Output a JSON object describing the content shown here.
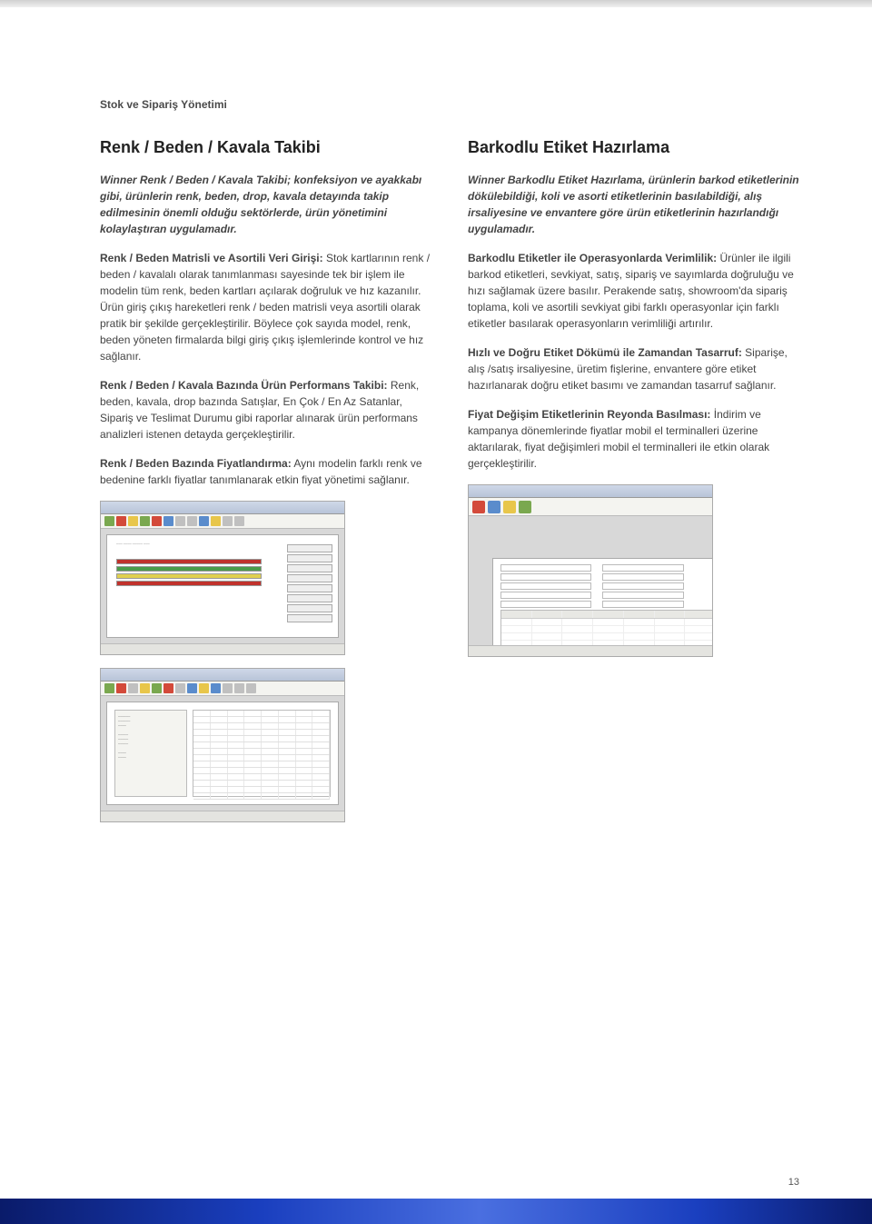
{
  "breadcrumb": "Stok ve Sipariş Yönetimi",
  "pageNumber": "13",
  "left": {
    "title": "Renk / Beden / Kavala Takibi",
    "intro": "Winner Renk / Beden / Kavala Takibi; konfeksiyon ve ayakkabı gibi, ürünlerin renk, beden, drop, kavala detayında takip edilmesinin önemli olduğu sektörlerde, ürün yönetimini kolaylaştıran uygulamadır.",
    "p1_lead": "Renk / Beden Matrisli ve Asortili Veri Girişi:",
    "p1_body": " Stok kartlarının renk / beden / kavalalı olarak tanımlanması sayesinde tek bir işlem ile modelin tüm renk, beden kartları açılarak doğruluk ve hız kazanılır. Ürün giriş çıkış hareketleri renk / beden matrisli veya asortili olarak pratik bir şekilde gerçekleştirilir. Böylece çok sayıda model, renk, beden yöneten firmalarda bilgi giriş çıkış işlemlerinde kontrol ve hız sağlanır.",
    "p2_lead": "Renk / Beden / Kavala Bazında Ürün Performans Takibi:",
    "p2_body": " Renk, beden, kavala, drop bazında Satışlar, En Çok / En Az Satanlar, Sipariş ve Teslimat Durumu gibi raporlar alınarak ürün performans analizleri istenen detayda gerçekleştirilir.",
    "p3_lead": "Renk / Beden Bazında Fiyatlandırma:",
    "p3_body": " Aynı modelin farklı renk ve bedenine farklı fiyatlar tanımlanarak etkin fiyat yönetimi sağlanır."
  },
  "right": {
    "title": "Barkodlu Etiket Hazırlama",
    "intro": "Winner Barkodlu Etiket Hazırlama, ürünlerin barkod etiketlerinin dökülebildiği, koli ve asorti etiketlerinin basılabildiği, alış irsaliyesine ve envantere göre ürün etiketlerinin hazırlandığı uygulamadır.",
    "p1_lead": "Barkodlu Etiketler ile Operasyonlarda Verimlilik:",
    "p1_body": " Ürünler ile ilgili barkod etiketleri, sevkiyat, satış, sipariş ve sayımlarda doğruluğu ve hızı sağlamak üzere basılır. Perakende satış, showroom'da sipariş toplama, koli ve asortili sevkiyat gibi farklı operasyonlar için farklı etiketler basılarak operasyonların verimliliği artırılır.",
    "p2_lead": "Hızlı ve Doğru Etiket Dökümü ile Zamandan Tasarruf:",
    "p2_body": " Siparişe, alış /satış irsaliyesine, üretim fişlerine, envantere göre etiket hazırlanarak doğru etiket basımı ve zamandan tasarruf sağlanır.",
    "p3_lead": "Fiyat Değişim Etiketlerinin Reyonda Basılması:",
    "p3_body": " İndirim ve kampanya dönemlerinde fiyatlar mobil el terminalleri üzerine aktarılarak, fiyat değişimleri mobil el terminalleri ile etkin olarak gerçekleştirilir."
  },
  "screenshots": {
    "s1": {
      "toolbar_colors": [
        "#7aa84f",
        "#d34a3a",
        "#e8c64a",
        "#7aa84f",
        "#d34a3a",
        "#5a8ccc",
        "#c0c0c0",
        "#c0c0c0",
        "#5a8ccc",
        "#e8c64a",
        "#c0c0c0",
        "#c0c0c0"
      ],
      "bars": [
        "b-red",
        "b-grn",
        "b-yel",
        "b-red"
      ]
    },
    "s2": {
      "toolbar_colors": [
        "#7aa84f",
        "#d34a3a",
        "#c0c0c0",
        "#e8c64a",
        "#7aa84f",
        "#d34a3a",
        "#c0c0c0",
        "#5a8ccc",
        "#e8c64a",
        "#5a8ccc",
        "#c0c0c0",
        "#c0c0c0",
        "#c0c0c0"
      ],
      "grid_rows": 14
    },
    "s3": {
      "toolbar_colors": [
        "#d34a3a",
        "#5a8ccc",
        "#e8c64a",
        "#7aa84f"
      ],
      "grid_rows": 10
    }
  },
  "colors": {
    "text": "#444",
    "heading": "#222",
    "footer_gradient": [
      "#0a1b6a",
      "#1a3fbf",
      "#4a6fe0"
    ]
  }
}
